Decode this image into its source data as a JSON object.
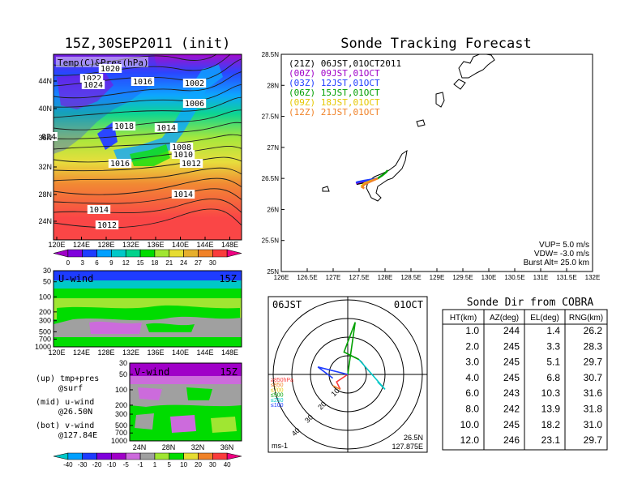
{
  "init_title": "15Z,30SEP2011 (init)",
  "main_title": "Sonde Tracking Forecast",
  "surface_panel": {
    "label": "Temp(C)&Pres(hPa)",
    "lat_ticks": [
      "44N",
      "40N",
      "36N",
      "32N",
      "28N",
      "24N"
    ],
    "lon_ticks": [
      "120E",
      "124E",
      "128E",
      "132E",
      "136E",
      "140E",
      "144E",
      "148E"
    ],
    "isobar_labels": [
      "1020",
      "1022",
      "1024",
      "1016",
      "1002",
      "1006",
      "1018",
      "1014",
      "024",
      "1008",
      "1010",
      "1016",
      "1012",
      "1014",
      "1014",
      "1012"
    ],
    "colorbar": {
      "labels": [
        "0",
        "3",
        "6",
        "9",
        "12",
        "15",
        "18",
        "21",
        "24",
        "27",
        "30"
      ],
      "colors": [
        "#a000c8",
        "#7f00dc",
        "#1e3cff",
        "#00a0ff",
        "#00c8c8",
        "#00d28c",
        "#00dc00",
        "#a0e632",
        "#e6dc32",
        "#e6af2d",
        "#f08228",
        "#fa3c3c",
        "#f00082"
      ]
    }
  },
  "uwind_panel": {
    "label": "U-wind",
    "time_label": "15Z",
    "p_ticks": [
      "30",
      "50",
      "100",
      "200",
      "300",
      "500",
      "700",
      "1000"
    ],
    "lon_ticks": [
      "120E",
      "124E",
      "128E",
      "132E",
      "136E",
      "140E",
      "144E",
      "148E"
    ]
  },
  "vwind_panel": {
    "label": "V-wind",
    "time_label": "15Z",
    "p_ticks": [
      "30",
      "50",
      "100",
      "200",
      "300",
      "500",
      "700",
      "1000"
    ],
    "lat_ticks": [
      "24N",
      "28N",
      "32N",
      "36N"
    ]
  },
  "legend_notes": [
    {
      "a": "(up) tmp+pres",
      "b": "@surf"
    },
    {
      "a": "(mid) u-wind",
      "b": "@26.50N"
    },
    {
      "a": "(bot) v-wind",
      "b": "@127.84E"
    }
  ],
  "wind_colorbar": {
    "labels": [
      "-40",
      "-30",
      "-20",
      "-10",
      "-5",
      "-1",
      "1",
      "5",
      "10",
      "20",
      "30",
      "40"
    ],
    "colors": [
      "#00c8c8",
      "#00a0ff",
      "#1e3cff",
      "#7f00dc",
      "#a000c8",
      "#cc6bdc",
      "#a0a0a0",
      "#a0e632",
      "#00dc00",
      "#e6dc32",
      "#f08228",
      "#fa3c3c",
      "#f00082"
    ]
  },
  "track_map": {
    "lat_ticks": [
      "28.5N",
      "28N",
      "27.5N",
      "27N",
      "26.5N",
      "26N",
      "25.5N",
      "25N"
    ],
    "lon_ticks": [
      "126E",
      "126.5E",
      "127E",
      "127.5E",
      "128E",
      "128.5E",
      "129E",
      "129.5E",
      "130E",
      "130.5E",
      "131E",
      "131.5E",
      "132E"
    ],
    "launches": [
      {
        "label": "(21Z)  06JST,01OCT2011",
        "color": "#000000"
      },
      {
        "label": "(00Z)  09JST,01OCT",
        "color": "#a000c8"
      },
      {
        "label": "(03Z)  12JST,01OCT",
        "color": "#1e3cff"
      },
      {
        "label": "(06Z)  15JST,01OCT",
        "color": "#00a000"
      },
      {
        "label": "(09Z)  18JST,01OCT",
        "color": "#e6c800"
      },
      {
        "label": "(12Z)  21JST,01OCT",
        "color": "#f08228"
      }
    ],
    "params": [
      "VUP=  5.0  m/s",
      "VDW= -3.0  m/s",
      "Burst Alt=  25.0  km"
    ]
  },
  "polar": {
    "time": "06JST",
    "date": "01OCT",
    "range_labels": [
      "10",
      "20",
      "30",
      "40"
    ],
    "pressure_legend": [
      {
        "label": "≥850hPa",
        "color": "#fa3c3c"
      },
      {
        "label": "≤850",
        "color": "#f08228"
      },
      {
        "label": "≤700",
        "color": "#e6c800"
      },
      {
        "label": "≤500",
        "color": "#00a000"
      },
      {
        "label": "≤250",
        "color": "#00c8c8"
      },
      {
        "label": "≤100",
        "color": "#1e3cff"
      }
    ],
    "unit": "ms-1",
    "lat": "26.5N",
    "lon": "127.875E"
  },
  "sonde_dir": {
    "title": "Sonde Dir from COBRA",
    "headers": [
      "HT(km)",
      "AZ(deg)",
      "EL(deg)",
      "RNG(km)"
    ],
    "rows": [
      [
        "1.0",
        "244",
        "1.4",
        "26.2"
      ],
      [
        "2.0",
        "245",
        "3.3",
        "28.3"
      ],
      [
        "3.0",
        "245",
        "5.1",
        "29.7"
      ],
      [
        "4.0",
        "245",
        "6.8",
        "30.7"
      ],
      [
        "6.0",
        "243",
        "10.3",
        "31.6"
      ],
      [
        "8.0",
        "242",
        "13.9",
        "31.8"
      ],
      [
        "10.0",
        "245",
        "18.2",
        "31.0"
      ],
      [
        "12.0",
        "246",
        "23.1",
        "29.7"
      ]
    ]
  },
  "chart_data": [
    {
      "type": "heatmap",
      "title": "Temp(C)&Pres(hPa)",
      "xlabel": "",
      "ylabel": "",
      "xlim": [
        120,
        150
      ],
      "ylim": [
        21,
        48
      ],
      "x_ticks": [
        "120E",
        "124E",
        "128E",
        "132E",
        "136E",
        "140E",
        "144E",
        "148E"
      ],
      "y_ticks": [
        "24N",
        "28N",
        "32N",
        "36N",
        "40N",
        "44N"
      ],
      "color_levels": [
        0,
        3,
        6,
        9,
        12,
        15,
        18,
        21,
        24,
        27,
        30
      ]
    },
    {
      "type": "heatmap",
      "title": "U-wind",
      "xlim": [
        120,
        150
      ],
      "y_ticks_hpa": [
        30,
        50,
        100,
        200,
        300,
        500,
        700,
        1000
      ]
    },
    {
      "type": "heatmap",
      "title": "V-wind",
      "xlim": [
        21,
        39
      ],
      "y_ticks_hpa": [
        30,
        50,
        100,
        200,
        300,
        500,
        700,
        1000
      ]
    },
    {
      "type": "line",
      "title": "Sonde Tracking Forecast",
      "xlim": [
        126,
        132
      ],
      "ylim": [
        25,
        28.5
      ],
      "series": [
        {
          "name": "(21Z) 06JST,01OCT2011",
          "color": "#000000",
          "x": [
            127.86,
            127.75,
            127.62,
            127.5,
            127.45,
            127.5,
            127.62,
            127.75
          ],
          "y": [
            26.5,
            26.47,
            26.44,
            26.42,
            26.41,
            26.42,
            26.44,
            26.46
          ]
        },
        {
          "name": "(00Z) 09JST,01OCT",
          "color": "#a000c8",
          "x": [
            127.86,
            127.72,
            127.58,
            127.47,
            127.44
          ],
          "y": [
            26.5,
            26.47,
            26.45,
            26.43,
            26.42
          ]
        },
        {
          "name": "(03Z) 12JST,01OCT",
          "color": "#1e3cff",
          "x": [
            127.86,
            127.72,
            127.58,
            127.47,
            127.44
          ],
          "y": [
            26.5,
            26.48,
            26.46,
            26.44,
            26.43
          ]
        },
        {
          "name": "(06Z) 15JST,01OCT",
          "color": "#00a000",
          "x": [
            127.86,
            127.95,
            128.02,
            128.05
          ],
          "y": [
            26.5,
            26.55,
            26.6,
            26.63
          ]
        },
        {
          "name": "(09Z) 18JST,01OCT",
          "color": "#e6c800",
          "x": [
            127.86,
            127.72,
            127.6,
            127.55,
            127.58
          ],
          "y": [
            26.5,
            26.46,
            26.42,
            26.38,
            26.36
          ]
        },
        {
          "name": "(12Z) 21JST,01OCT",
          "color": "#f08228",
          "x": [
            127.86,
            127.72,
            127.6,
            127.56,
            127.6
          ],
          "y": [
            26.5,
            26.45,
            26.4,
            26.36,
            26.34
          ]
        }
      ]
    },
    {
      "type": "line",
      "title": "06JST 01OCT",
      "series": [
        {
          "name": "≥850hPa",
          "color": "#fa3c3c",
          "u": [
            0,
            -3,
            -2
          ],
          "v": [
            0,
            -2,
            -4
          ]
        },
        {
          "name": "≤850",
          "color": "#f08228",
          "u": [
            -2,
            -4
          ],
          "v": [
            -4,
            -3
          ]
        },
        {
          "name": "≤500",
          "color": "#00a000",
          "u": [
            0,
            2,
            -1,
            3
          ],
          "v": [
            0,
            14,
            6,
            4
          ]
        },
        {
          "name": "≤250",
          "color": "#00c8c8",
          "u": [
            3,
            10,
            8
          ],
          "v": [
            4,
            -4,
            -2
          ]
        },
        {
          "name": "≤100",
          "color": "#1e3cff",
          "u": [
            0,
            -8,
            -4
          ],
          "v": [
            0,
            2,
            -1
          ]
        }
      ]
    },
    {
      "type": "table",
      "title": "Sonde Dir from COBRA",
      "columns": [
        "HT(km)",
        "AZ(deg)",
        "EL(deg)",
        "RNG(km)"
      ],
      "rows": [
        [
          1.0,
          244,
          1.4,
          26.2
        ],
        [
          2.0,
          245,
          3.3,
          28.3
        ],
        [
          3.0,
          245,
          5.1,
          29.7
        ],
        [
          4.0,
          245,
          6.8,
          30.7
        ],
        [
          6.0,
          243,
          10.3,
          31.6
        ],
        [
          8.0,
          242,
          13.9,
          31.8
        ],
        [
          10.0,
          245,
          18.2,
          31.0
        ],
        [
          12.0,
          246,
          23.1,
          29.7
        ]
      ]
    }
  ]
}
